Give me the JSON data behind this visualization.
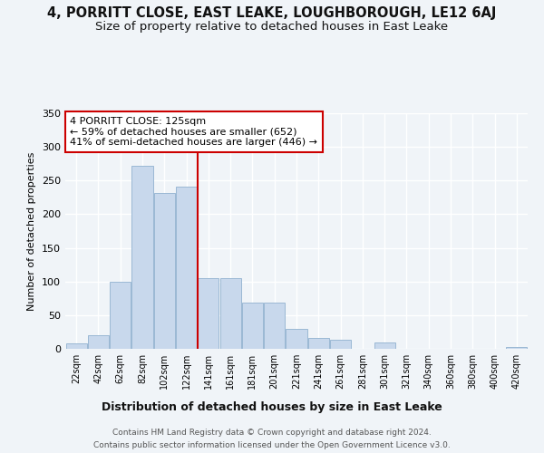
{
  "title1": "4, PORRITT CLOSE, EAST LEAKE, LOUGHBOROUGH, LE12 6AJ",
  "title2": "Size of property relative to detached houses in East Leake",
  "xlabel": "Distribution of detached houses by size in East Leake",
  "ylabel": "Number of detached properties",
  "footnote1": "Contains HM Land Registry data © Crown copyright and database right 2024.",
  "footnote2": "Contains public sector information licensed under the Open Government Licence v3.0.",
  "bar_labels": [
    "22sqm",
    "42sqm",
    "62sqm",
    "82sqm",
    "102sqm",
    "122sqm",
    "141sqm",
    "161sqm",
    "181sqm",
    "201sqm",
    "221sqm",
    "241sqm",
    "261sqm",
    "281sqm",
    "301sqm",
    "321sqm",
    "340sqm",
    "360sqm",
    "380sqm",
    "400sqm",
    "420sqm"
  ],
  "bar_values": [
    8,
    20,
    99,
    272,
    231,
    241,
    105,
    105,
    69,
    69,
    29,
    16,
    14,
    0,
    10,
    0,
    0,
    0,
    0,
    0,
    3
  ],
  "bar_color": "#c8d8ec",
  "bar_edge_color": "#9ab8d4",
  "vline_x": 5.5,
  "vline_color": "#cc0000",
  "annotation_title": "4 PORRITT CLOSE: 125sqm",
  "annotation_line1": "← 59% of detached houses are smaller (652)",
  "annotation_line2": "41% of semi-detached houses are larger (446) →",
  "ylim": [
    0,
    350
  ],
  "yticks": [
    0,
    50,
    100,
    150,
    200,
    250,
    300,
    350
  ],
  "background_color": "#f0f4f8",
  "plot_bg_color": "#f0f4f8",
  "grid_color": "#ffffff",
  "title1_fontsize": 10.5,
  "title2_fontsize": 9.5,
  "annotation_box_color": "#ffffff",
  "annotation_border_color": "#cc0000"
}
